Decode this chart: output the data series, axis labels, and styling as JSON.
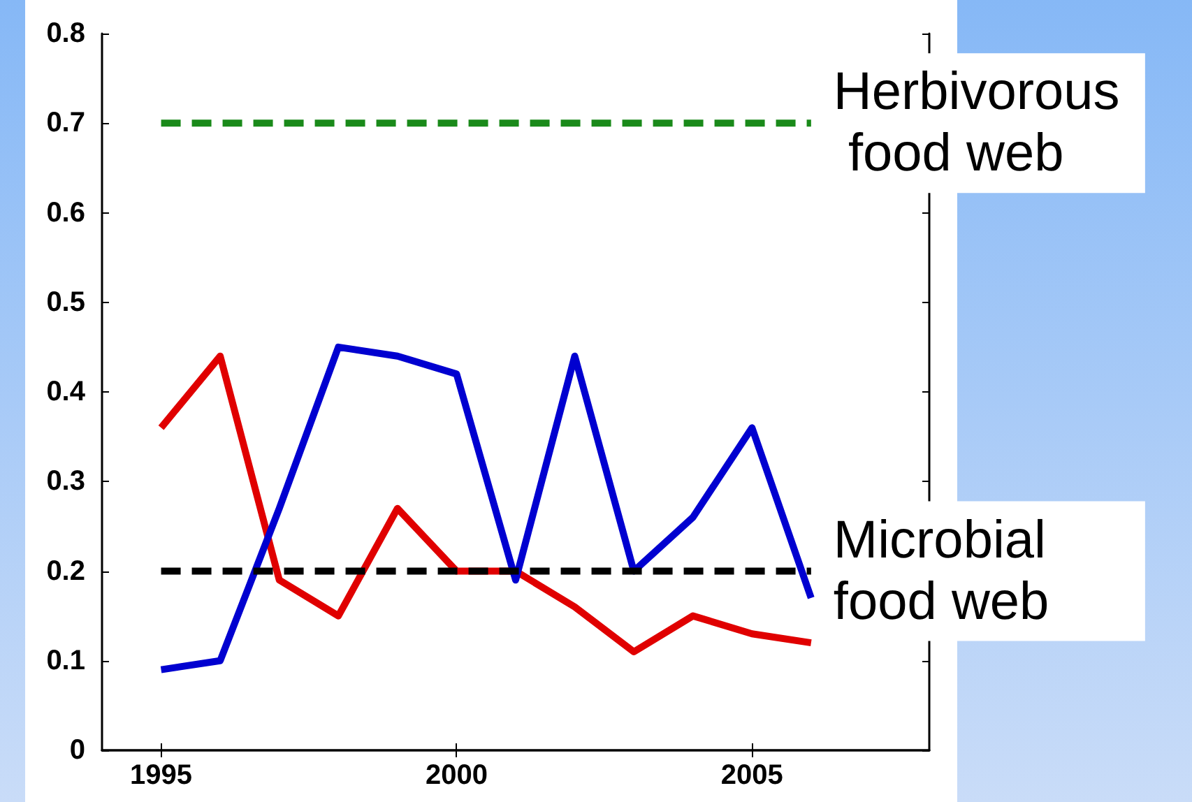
{
  "chart_data": {
    "type": "line",
    "x": [
      1995,
      1996,
      1997,
      1998,
      1999,
      2000,
      2001,
      2002,
      2003,
      2004,
      2005,
      2006
    ],
    "xlim": [
      1994,
      2008
    ],
    "xticks": [
      1995,
      2000,
      2005
    ],
    "ylim": [
      0,
      0.8
    ],
    "yticks": [
      0,
      0.1,
      0.2,
      0.3,
      0.4,
      0.5,
      0.6,
      0.7,
      0.8
    ],
    "grid": false,
    "marker": "none",
    "annotations": [
      {
        "text": "Herbivorous food web",
        "x": 2006,
        "y": 0.7
      },
      {
        "text": "Microbial food web",
        "x": 2006,
        "y": 0.2
      }
    ],
    "series": [
      {
        "color": "#e00000",
        "values": [
          0.36,
          0.44,
          0.19,
          0.15,
          0.27,
          0.2,
          0.2,
          0.16,
          0.11,
          0.15,
          0.13,
          0.12
        ],
        "line_style": "solid"
      },
      {
        "color": "#0000d0",
        "values": [
          0.09,
          0.1,
          0.27,
          0.45,
          0.44,
          0.42,
          0.19,
          0.44,
          0.2,
          0.26,
          0.36,
          0.17
        ],
        "line_style": "solid"
      },
      {
        "color": "#1a8a1a",
        "values": [
          0.7,
          0.7,
          0.7,
          0.7,
          0.7,
          0.7,
          0.7,
          0.7,
          0.7,
          0.7,
          0.7,
          0.7
        ],
        "line_style": "dashed"
      },
      {
        "color": "#000000",
        "values": [
          0.2,
          0.2,
          0.2,
          0.2,
          0.2,
          0.2,
          0.2,
          0.2,
          0.2,
          0.2,
          0.2,
          0.2
        ],
        "line_style": "dashed"
      }
    ]
  }
}
